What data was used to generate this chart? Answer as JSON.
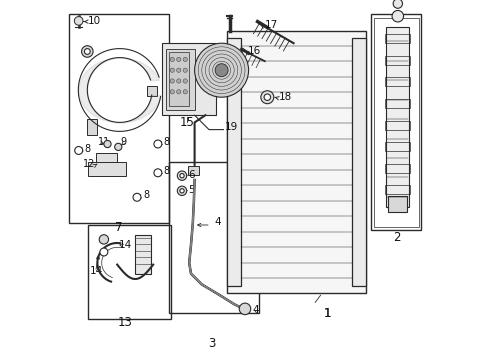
{
  "bg_color": "#ffffff",
  "lc": "#2a2a2a",
  "figw": 4.9,
  "figh": 3.6,
  "dpi": 100,
  "boxes": {
    "7": [
      0.012,
      0.04,
      0.29,
      0.62
    ],
    "13": [
      0.065,
      0.625,
      0.295,
      0.88
    ],
    "3": [
      0.29,
      0.45,
      0.54,
      0.87
    ],
    "2": [
      0.85,
      0.04,
      0.99,
      0.64
    ]
  },
  "labels": {
    "1": [
      0.735,
      0.87,
      "1"
    ],
    "2": [
      0.922,
      0.66,
      "2"
    ],
    "3": [
      0.408,
      0.95,
      "3"
    ],
    "4a": [
      0.43,
      0.62,
      "4"
    ],
    "4b": [
      0.572,
      0.875,
      "4"
    ],
    "5": [
      0.355,
      0.69,
      "5"
    ],
    "6": [
      0.355,
      0.61,
      "6"
    ],
    "7": [
      0.115,
      0.635,
      "7"
    ],
    "8a": [
      0.052,
      0.43,
      "8"
    ],
    "8b": [
      0.26,
      0.41,
      "8"
    ],
    "8c": [
      0.26,
      0.49,
      "8"
    ],
    "8d": [
      0.192,
      0.555,
      "8"
    ],
    "9": [
      0.185,
      0.475,
      "9"
    ],
    "10": [
      0.12,
      0.09,
      "10"
    ],
    "11": [
      0.1,
      0.39,
      "11"
    ],
    "12": [
      0.095,
      0.455,
      "12"
    ],
    "13": [
      0.167,
      0.895,
      "13"
    ],
    "14a": [
      0.155,
      0.695,
      "14"
    ],
    "14b": [
      0.065,
      0.765,
      "14"
    ],
    "15": [
      0.395,
      0.51,
      "15"
    ],
    "16": [
      0.497,
      0.165,
      "16"
    ],
    "17": [
      0.575,
      0.075,
      "17"
    ],
    "18": [
      0.598,
      0.285,
      "18"
    ],
    "19": [
      0.485,
      0.355,
      "19"
    ]
  }
}
